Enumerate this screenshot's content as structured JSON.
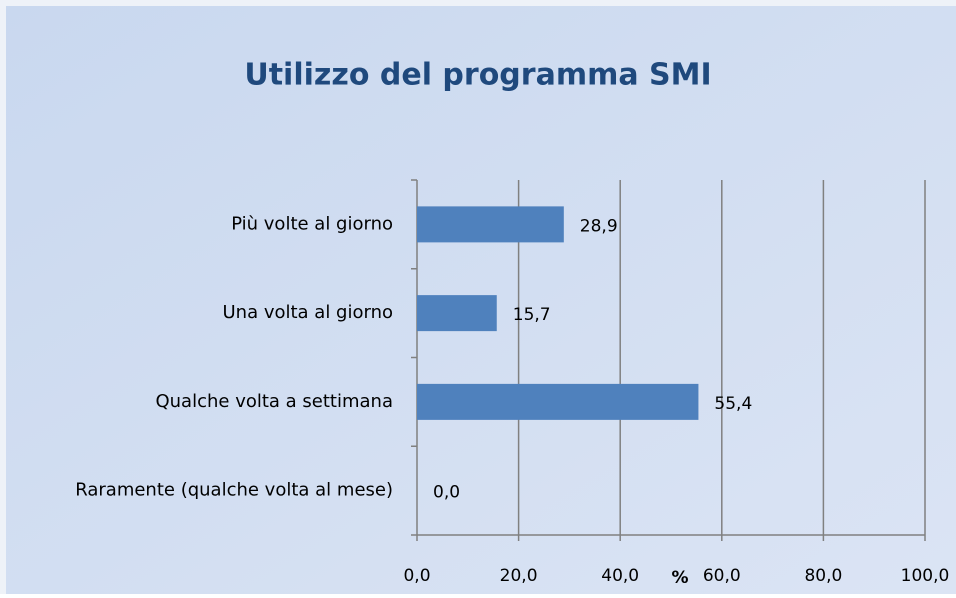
{
  "chart_data": {
    "type": "hbar",
    "title": "Utilizzo del programma SMI",
    "x_label": "%",
    "categories": [
      "Più volte al giorno",
      "Una volta al giorno",
      "Qualche volta a settimana",
      "Raramente (qualche volta al mese)"
    ],
    "values": [
      28.9,
      15.7,
      55.4,
      0.0
    ],
    "value_labels": [
      "28,9",
      "15,7",
      "55,4",
      "0,0"
    ],
    "color": "#4f81bd",
    "xlim": [
      0,
      100
    ],
    "xticks": [
      {
        "value": 0,
        "label": "0,0"
      },
      {
        "value": 20,
        "label": "20,0"
      },
      {
        "value": 40,
        "label": "40,0"
      },
      {
        "value": 60,
        "label": "60,0"
      },
      {
        "value": 80,
        "label": "80,0"
      },
      {
        "value": 100,
        "label": "100,0"
      }
    ],
    "grid": true
  }
}
